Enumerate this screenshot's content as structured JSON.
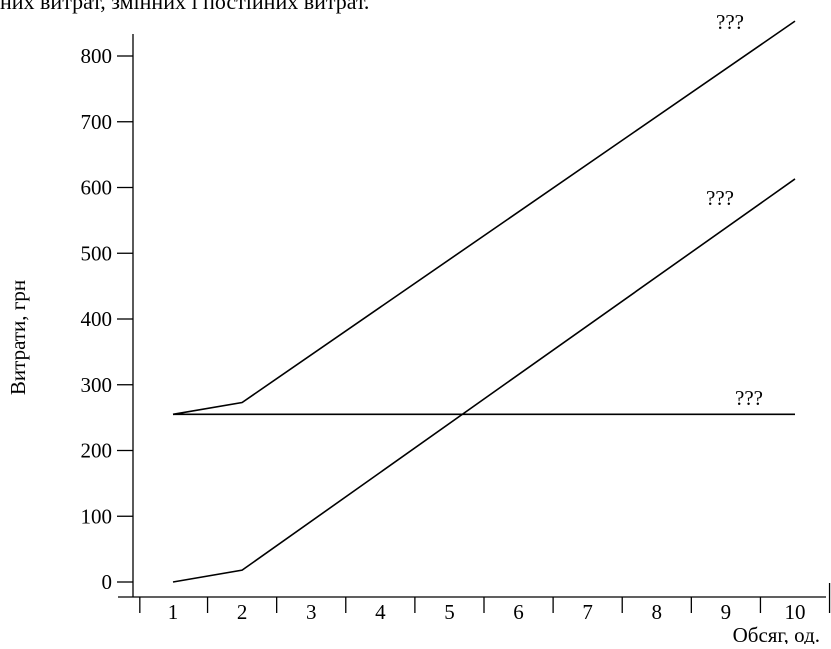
{
  "header_fragment": "них витрат, змінних і постійних витрат.",
  "chart_data": {
    "type": "line",
    "title": "",
    "xlabel": "Обсяг, од.",
    "ylabel": "Витрати, грн",
    "x_ticks": [
      "1",
      "2",
      "3",
      "4",
      "5",
      "6",
      "7",
      "8",
      "9",
      "10"
    ],
    "y_ticks": [
      "0",
      "100",
      "200",
      "300",
      "400",
      "500",
      "600",
      "700",
      "800"
    ],
    "xlim": [
      0.6,
      10.8
    ],
    "ylim": [
      0,
      860
    ],
    "grid": false,
    "series": [
      {
        "name": "???",
        "x": [
          1,
          2,
          10
        ],
        "y": [
          255,
          273,
          853
        ]
      },
      {
        "name": "???",
        "x": [
          1,
          2,
          10
        ],
        "y": [
          0,
          18,
          613
        ]
      },
      {
        "name": "???",
        "x": [
          1,
          10
        ],
        "y": [
          255,
          255
        ]
      }
    ]
  }
}
